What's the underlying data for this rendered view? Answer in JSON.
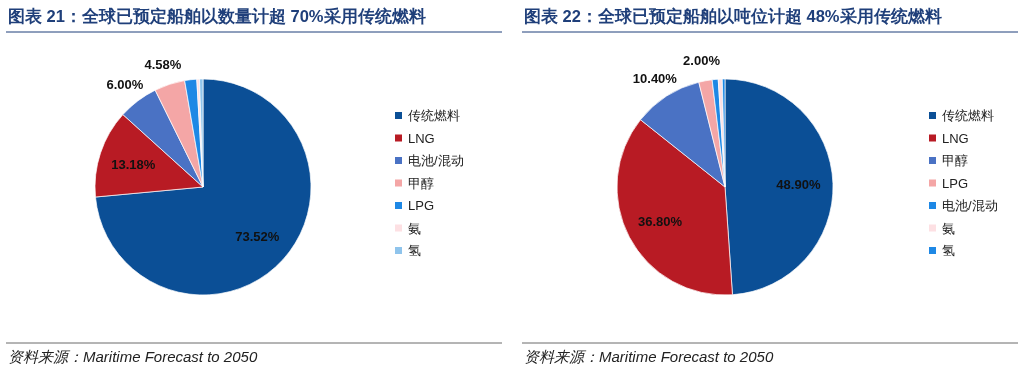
{
  "chart_data": [
    {
      "type": "pie",
      "title": "图表 21：全球已预定船舶以数量计超 70%采用传统燃料",
      "categories": [
        "传统燃料",
        "LNG",
        "电池/混动",
        "甲醇",
        "LPG",
        "氨",
        "氢"
      ],
      "values": [
        73.52,
        13.18,
        6.0,
        4.58,
        1.8,
        0.4,
        0.52
      ],
      "colors": [
        "#0b4f96",
        "#b81b24",
        "#4a72c4",
        "#f4a6a6",
        "#1e88e5",
        "#fde0e3",
        "#8fc4ec"
      ],
      "value_labels": [
        "73.52%",
        "13.18%",
        "6.00%",
        "4.58%",
        null,
        null,
        null
      ],
      "legend": "right",
      "annotations": [
        "资料来源：Maritime Forecast to 2050"
      ]
    },
    {
      "type": "pie",
      "title": "图表 22：全球已预定船舶以吨位计超 48%采用传统燃料",
      "categories": [
        "传统燃料",
        "LNG",
        "甲醇",
        "LPG",
        "电池/混动",
        "氨",
        "氢"
      ],
      "values": [
        48.9,
        36.8,
        10.4,
        2.0,
        0.9,
        0.6,
        0.4
      ],
      "colors": [
        "#0b4f96",
        "#b81b24",
        "#4a72c4",
        "#f4a6a6",
        "#1e88e5",
        "#fde0e3",
        "#1e88e5"
      ],
      "value_labels": [
        "48.90%",
        "36.80%",
        "10.40%",
        "2.00%",
        null,
        null,
        null
      ],
      "legend": "right",
      "annotations": [
        "资料来源：Maritime Forecast to 2050"
      ]
    }
  ]
}
